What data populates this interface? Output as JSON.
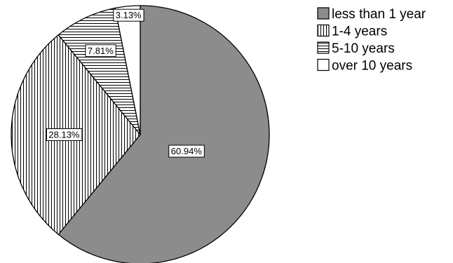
{
  "chart_data": {
    "type": "pie",
    "categories": [
      "less than 1 year",
      "1-4 years",
      "5-10 years",
      "over 10 years"
    ],
    "values": [
      60.94,
      28.13,
      7.81,
      3.13
    ],
    "value_labels": [
      "60.94%",
      "28.13%",
      "7.81%",
      "3.13%"
    ],
    "fills": [
      "solid-gray",
      "vertical-lines",
      "horizontal-lines",
      "none"
    ],
    "colors": {
      "solid": "#8c8c8c",
      "stroke": "#000000",
      "background": "#ffffff"
    },
    "start_angle_deg": 0,
    "direction": "clockwise",
    "legend_position": "top-right"
  }
}
